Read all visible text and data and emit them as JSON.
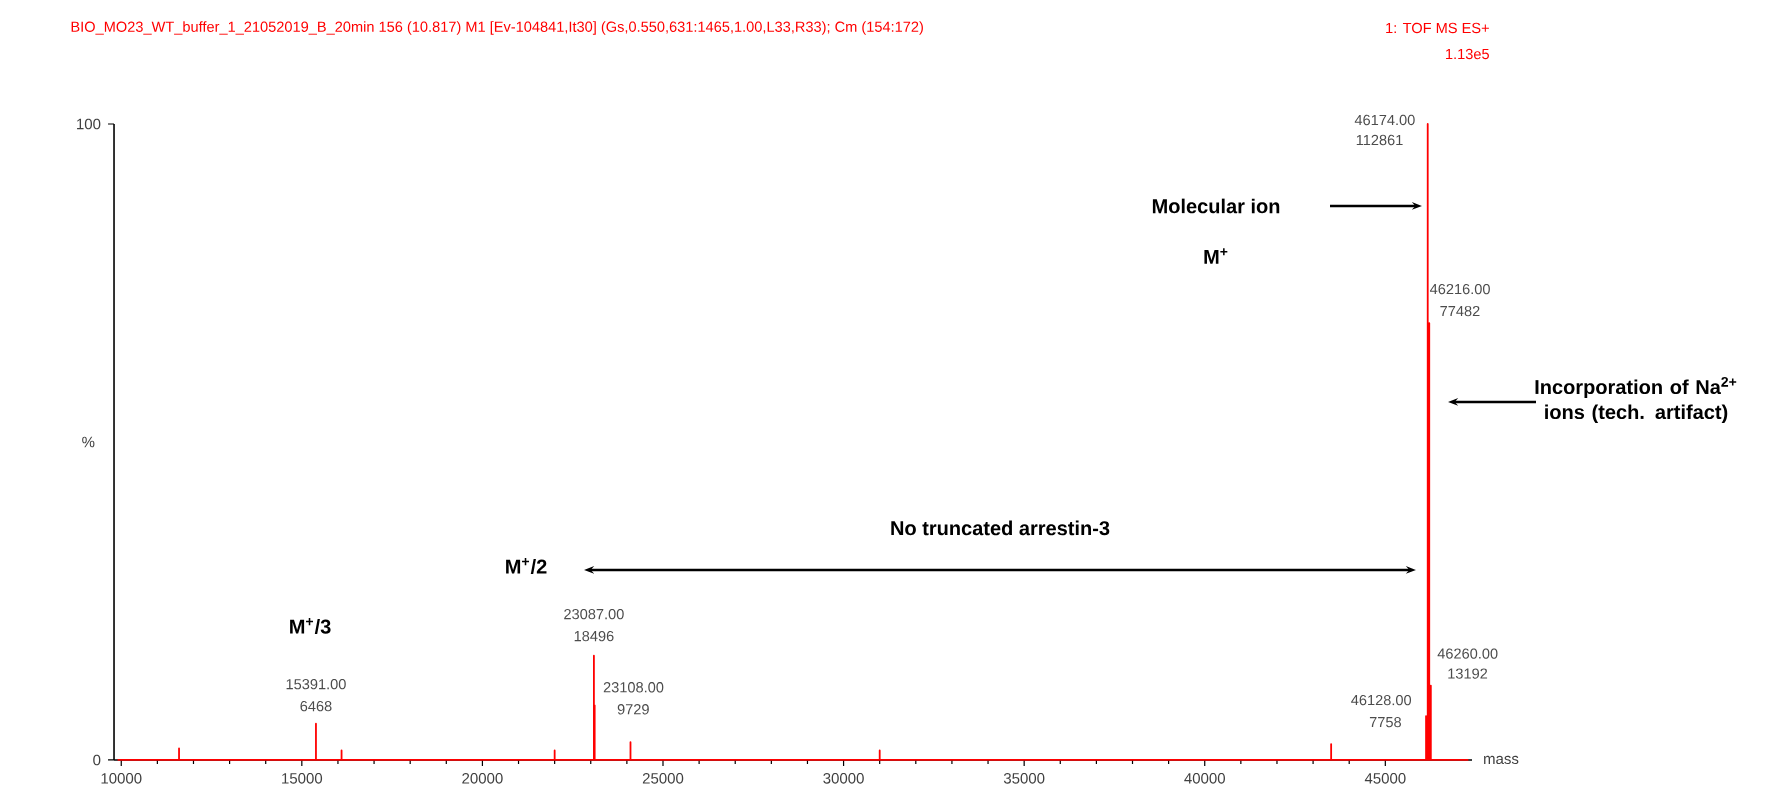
{
  "chart_data": {
    "type": "line",
    "title": "BIO_MO23_WT_buffer_1_21052019_B_20min  156 (10.817) M1 [Ev-104841,It30] (Gs,0.550,631:1465,1.00,L33,R33); Cm (154:172)",
    "xlabel": "mass",
    "ylabel": "%",
    "xlim": [
      9800,
      47400
    ],
    "ylim": [
      0,
      100
    ],
    "xticks": [
      10000,
      15000,
      20000,
      25000,
      30000,
      35000,
      40000,
      45000
    ],
    "yticks": [
      0,
      100
    ],
    "series": [
      {
        "color": "#ff0000",
        "x": [
          9900,
          11600,
          11600,
          11600,
          15391,
          15391,
          15391,
          16100,
          16100,
          16100,
          22000,
          22000,
          22000,
          23087,
          23087,
          23087,
          23108,
          23108,
          23108,
          24100,
          24100,
          24100,
          31000,
          31000,
          31000,
          43500,
          43500,
          43500,
          46128,
          46128,
          46128,
          46174,
          46174,
          46174,
          46216,
          46216,
          46216,
          46260,
          46260,
          46260,
          47300
        ],
        "values": [
          0,
          0,
          1.8,
          0,
          0,
          5.7,
          0,
          0,
          1.5,
          0,
          0,
          1.5,
          0,
          0,
          16.4,
          0,
          0,
          8.6,
          0,
          0,
          2.8,
          0,
          0,
          1.5,
          0,
          0,
          2.5,
          0,
          0,
          6.9,
          0,
          0,
          100,
          0,
          0,
          68.7,
          0,
          0,
          11.7,
          0,
          0
        ]
      }
    ],
    "annotations": [
      {
        "text": "46174.00",
        "x": 46174,
        "y": 100
      },
      {
        "text": "112861",
        "x": 46174,
        "y": 100
      },
      {
        "text": "46216.00",
        "x": 46216,
        "y": 68.7
      },
      {
        "text": "77482",
        "x": 46216,
        "y": 68.7
      },
      {
        "text": "46260.00",
        "x": 46260,
        "y": 11.7
      },
      {
        "text": "13192",
        "x": 46260,
        "y": 11.7
      },
      {
        "text": "46128.00",
        "x": 46128,
        "y": 6.9
      },
      {
        "text": "7758",
        "x": 46128,
        "y": 6.9
      },
      {
        "text": "23087.00",
        "x": 23087,
        "y": 16.4
      },
      {
        "text": "18496",
        "x": 23087,
        "y": 16.4
      },
      {
        "text": "23108.00",
        "x": 23108,
        "y": 8.6
      },
      {
        "text": "9729",
        "x": 23108,
        "y": 8.6
      },
      {
        "text": "15391.00",
        "x": 15391,
        "y": 5.7
      },
      {
        "text": "6468",
        "x": 15391,
        "y": 5.7
      },
      "1: TOF MS ES+",
      "1.13e5",
      "Molecular ion",
      "M$^{+}$",
      "Incorporation of Na$^{2+}$ ions (tech. artifact)",
      "No truncated arrestin-3",
      "M$^{+}$/2",
      "M$^{+}$/3"
    ]
  }
}
